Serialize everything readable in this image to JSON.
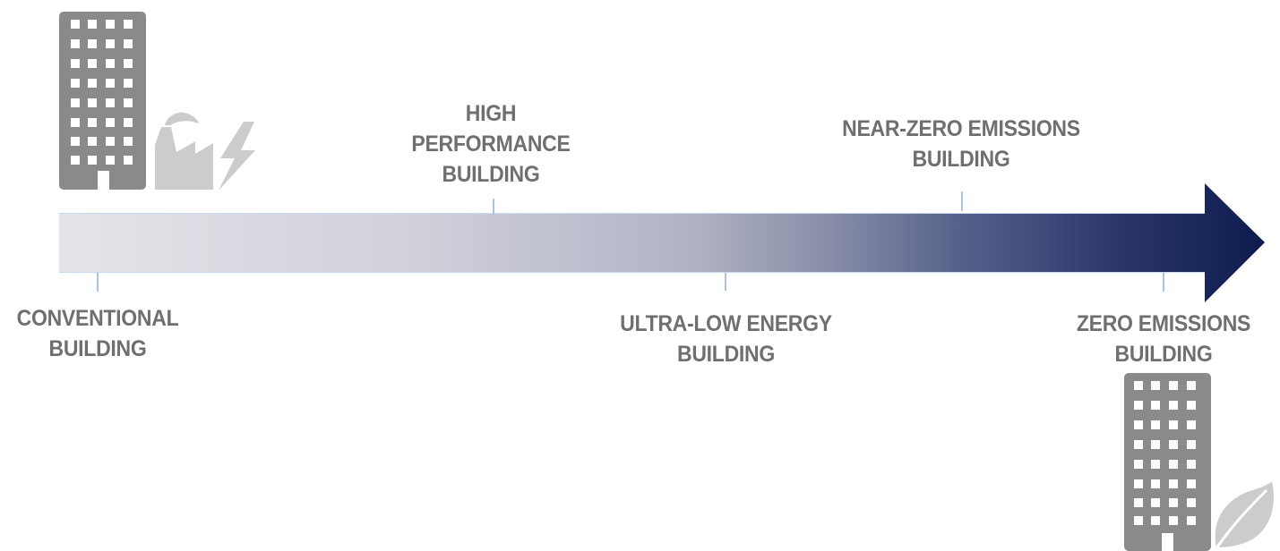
{
  "diagram": {
    "stages": [
      {
        "id": "conventional",
        "lines": [
          "CONVENTIONAL",
          "BUILDING"
        ]
      },
      {
        "id": "high-performance",
        "lines": [
          "HIGH",
          "PERFORMANCE",
          "BUILDING"
        ]
      },
      {
        "id": "ultra-low",
        "lines": [
          "ULTRA-LOW ENERGY",
          "BUILDING"
        ]
      },
      {
        "id": "near-zero",
        "lines": [
          "NEAR-ZERO EMISSIONS",
          "BUILDING"
        ]
      },
      {
        "id": "zero",
        "lines": [
          "ZERO EMISSIONS",
          "BUILDING"
        ]
      }
    ],
    "colors": {
      "arrow_start": "#e3e3e8",
      "arrow_mid": "#b3b5c6",
      "arrow_end": "#0e1b4f",
      "tick": "#a9c3e4",
      "icon": "#8a8a8a",
      "icon_light": "#cccccc",
      "label": "#6f6f6f"
    },
    "icons": {
      "start_building": "building-icon",
      "start_factory": "factory-icon",
      "start_lightning": "lightning-icon",
      "end_building": "building-icon",
      "end_leaf": "leaf-icon"
    }
  }
}
